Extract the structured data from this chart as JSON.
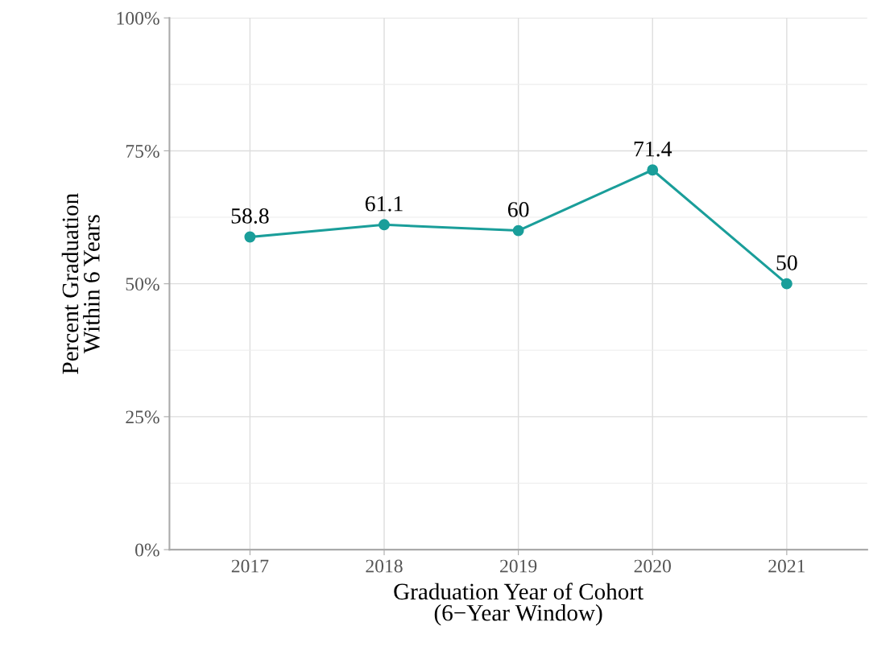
{
  "chart_data": {
    "type": "line",
    "xlabel": "Graduation Year of Cohort\n(6−Year Window)",
    "ylabel": "Percent Graduation\nWithin 6 Years",
    "categories": [
      "2017",
      "2018",
      "2019",
      "2020",
      "2021"
    ],
    "series": [
      {
        "color": "#1a9e9a",
        "values": [
          58.8,
          61.1,
          60,
          71.4,
          50
        ]
      }
    ],
    "ylim": [
      0,
      100
    ],
    "yticks": [
      {
        "value": 0,
        "label": "0%"
      },
      {
        "value": 25,
        "label": "25%"
      },
      {
        "value": 50,
        "label": "50%"
      },
      {
        "value": 75,
        "label": "75%"
      },
      {
        "value": 100,
        "label": "100%"
      }
    ],
    "grid": true,
    "marker": "circle",
    "line_style": "solid",
    "data_labels": true
  }
}
